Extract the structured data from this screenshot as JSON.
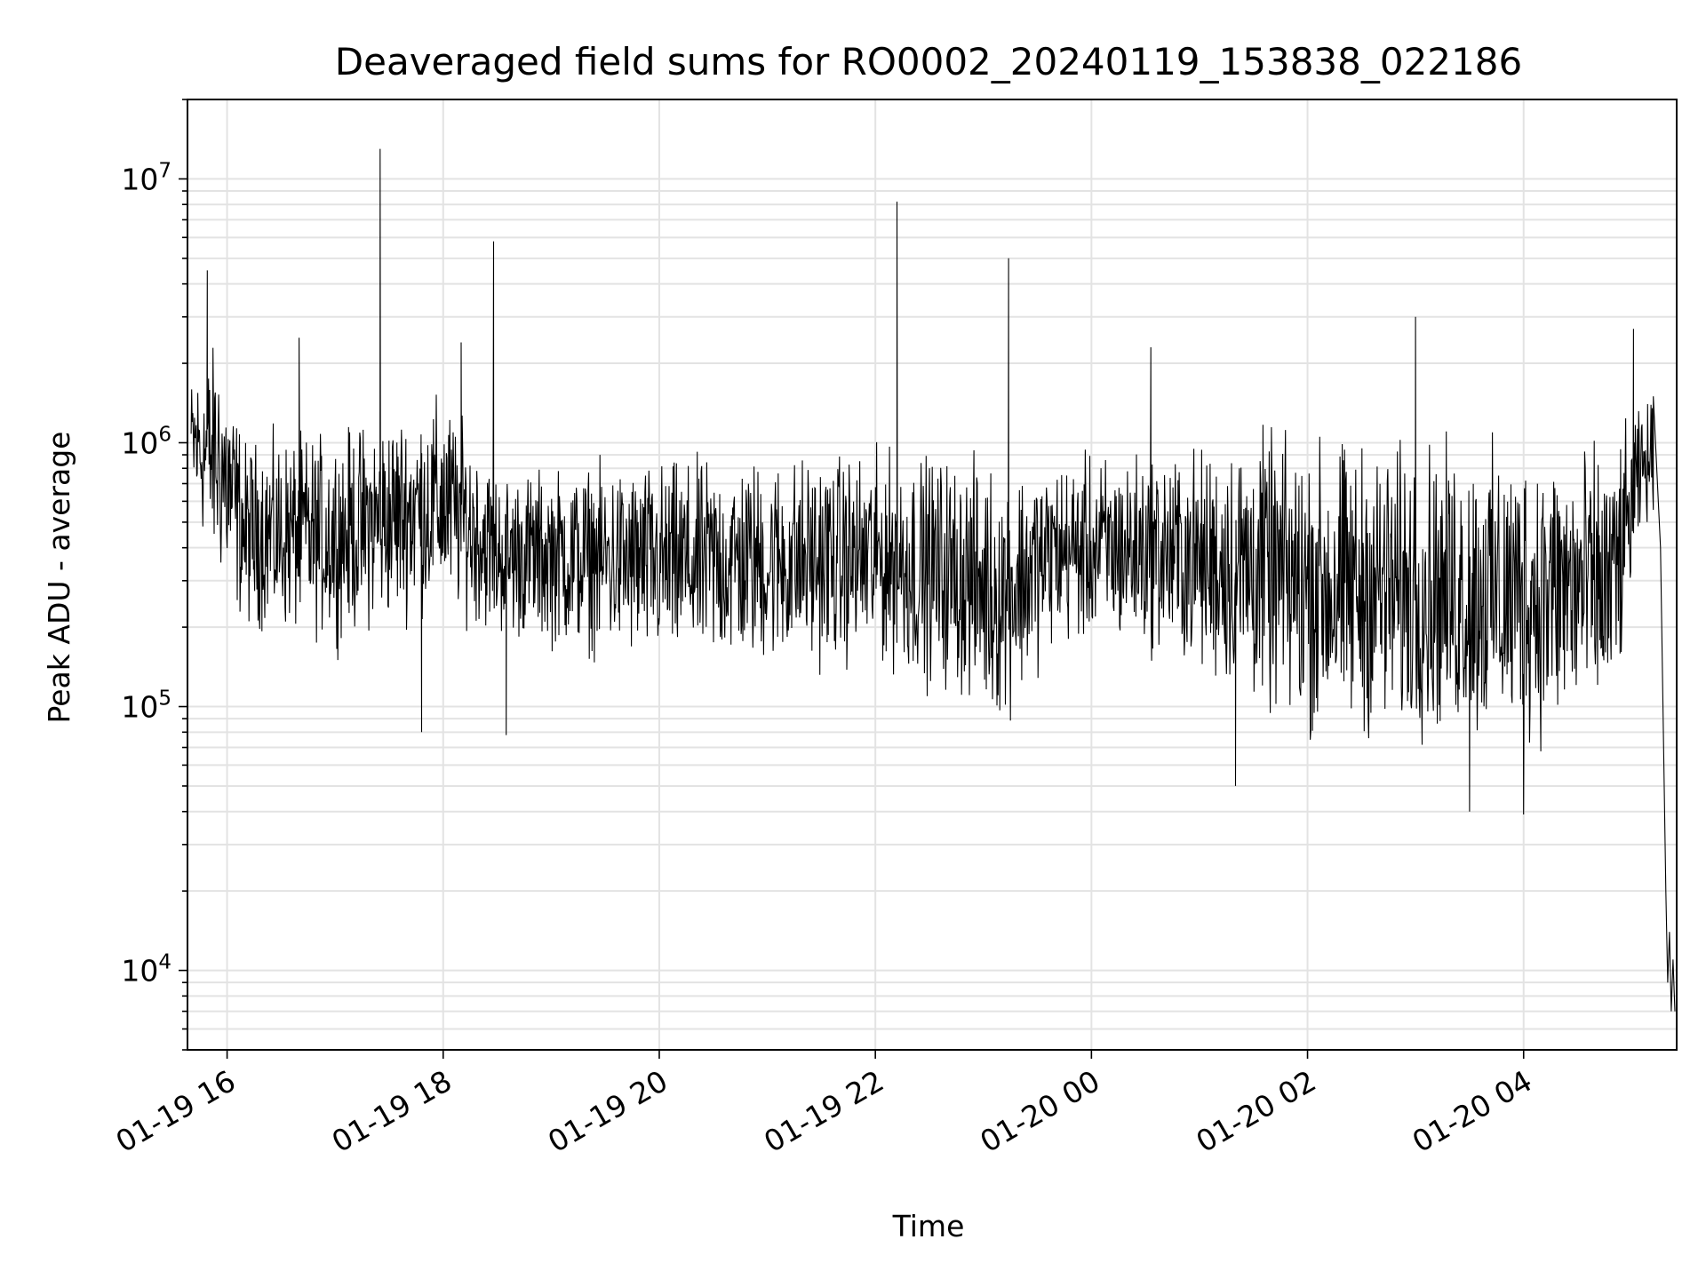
{
  "chart_data": {
    "type": "line",
    "title": "Deaveraged field sums for RO0002_20240119_153838_022186",
    "xlabel": "Time",
    "ylabel": "Peak ADU - average",
    "y_scale": "log",
    "ylim": [
      5000,
      20000000
    ],
    "xlim": [
      "2024-01-19 15:38",
      "2024-01-20 05:25"
    ],
    "grid": true,
    "line_color": "#000000",
    "grid_color": "#e3e3e3",
    "x_ticks": [
      {
        "value": "2024-01-19 16:00",
        "label": "01-19 16"
      },
      {
        "value": "2024-01-19 18:00",
        "label": "01-19 18"
      },
      {
        "value": "2024-01-19 20:00",
        "label": "01-19 20"
      },
      {
        "value": "2024-01-19 22:00",
        "label": "01-19 22"
      },
      {
        "value": "2024-01-20 00:00",
        "label": "01-20 00"
      },
      {
        "value": "2024-01-20 02:00",
        "label": "01-20 02"
      },
      {
        "value": "2024-01-20 04:00",
        "label": "01-20 04"
      }
    ],
    "y_ticks": [
      {
        "value": 10000,
        "base": "10",
        "exp": "4"
      },
      {
        "value": 100000,
        "base": "10",
        "exp": "5"
      },
      {
        "value": 1000000,
        "base": "10",
        "exp": "6"
      },
      {
        "value": 10000000,
        "base": "10",
        "exp": "7"
      }
    ],
    "series": [
      {
        "style": "noisy-band",
        "envelope": [
          {
            "x": "2024-01-19 15:40",
            "low": 500000,
            "high": 2000000
          },
          {
            "x": "2024-01-19 15:55",
            "low": 250000,
            "high": 3000000
          },
          {
            "x": "2024-01-19 16:10",
            "low": 170000,
            "high": 1200000
          },
          {
            "x": "2024-01-19 17:00",
            "low": 150000,
            "high": 1300000
          },
          {
            "x": "2024-01-19 18:00",
            "low": 200000,
            "high": 1800000
          },
          {
            "x": "2024-01-19 18:30",
            "low": 160000,
            "high": 900000
          },
          {
            "x": "2024-01-19 20:00",
            "low": 120000,
            "high": 1000000
          },
          {
            "x": "2024-01-19 22:00",
            "low": 120000,
            "high": 1100000
          },
          {
            "x": "2024-01-19 22:45",
            "low": 90000,
            "high": 1100000
          },
          {
            "x": "2024-01-19 23:10",
            "low": 70000,
            "high": 1000000
          },
          {
            "x": "2024-01-19 23:40",
            "low": 150000,
            "high": 1000000
          },
          {
            "x": "2024-01-20 00:30",
            "low": 140000,
            "high": 1100000
          },
          {
            "x": "2024-01-20 01:00",
            "low": 110000,
            "high": 1150000
          },
          {
            "x": "2024-01-20 01:30",
            "low": 80000,
            "high": 1400000
          },
          {
            "x": "2024-01-20 02:00",
            "low": 60000,
            "high": 1300000
          },
          {
            "x": "2024-01-20 03:00",
            "low": 60000,
            "high": 1250000
          },
          {
            "x": "2024-01-20 04:00",
            "low": 55000,
            "high": 1250000
          },
          {
            "x": "2024-01-20 04:50",
            "low": 70000,
            "high": 1200000
          },
          {
            "x": "2024-01-20 05:05",
            "low": 400000,
            "high": 1500000
          },
          {
            "x": "2024-01-20 05:12",
            "low": 500000,
            "high": 1600000
          }
        ],
        "spikes": [
          {
            "x": "2024-01-19 15:49",
            "y": 4500000
          },
          {
            "x": "2024-01-19 17:25",
            "y": 13000000
          },
          {
            "x": "2024-01-19 18:28",
            "y": 5800000
          },
          {
            "x": "2024-01-19 22:12",
            "y": 8200000
          },
          {
            "x": "2024-01-19 23:14",
            "y": 5000000
          },
          {
            "x": "2024-01-20 00:33",
            "y": 2300000
          },
          {
            "x": "2024-01-20 03:00",
            "y": 3000000
          },
          {
            "x": "2024-01-20 05:01",
            "y": 2700000
          },
          {
            "x": "2024-01-19 16:40",
            "y": 2500000
          },
          {
            "x": "2024-01-19 18:10",
            "y": 2400000
          },
          {
            "x": "2024-01-19 17:48",
            "y": 80000
          },
          {
            "x": "2024-01-19 18:35",
            "y": 78000
          },
          {
            "x": "2024-01-20 04:00",
            "y": 39000
          },
          {
            "x": "2024-01-20 03:30",
            "y": 40000
          },
          {
            "x": "2024-01-20 01:20",
            "y": 50000
          }
        ],
        "tail": [
          {
            "x": "2024-01-20 05:12",
            "y": 1500000
          },
          {
            "x": "2024-01-20 05:16",
            "y": 400000
          },
          {
            "x": "2024-01-20 05:19",
            "y": 20000
          },
          {
            "x": "2024-01-20 05:20",
            "y": 9000
          },
          {
            "x": "2024-01-20 05:21",
            "y": 14000
          },
          {
            "x": "2024-01-20 05:22",
            "y": 7000
          },
          {
            "x": "2024-01-20 05:23",
            "y": 11000
          },
          {
            "x": "2024-01-20 05:24",
            "y": 7000
          }
        ]
      }
    ]
  }
}
